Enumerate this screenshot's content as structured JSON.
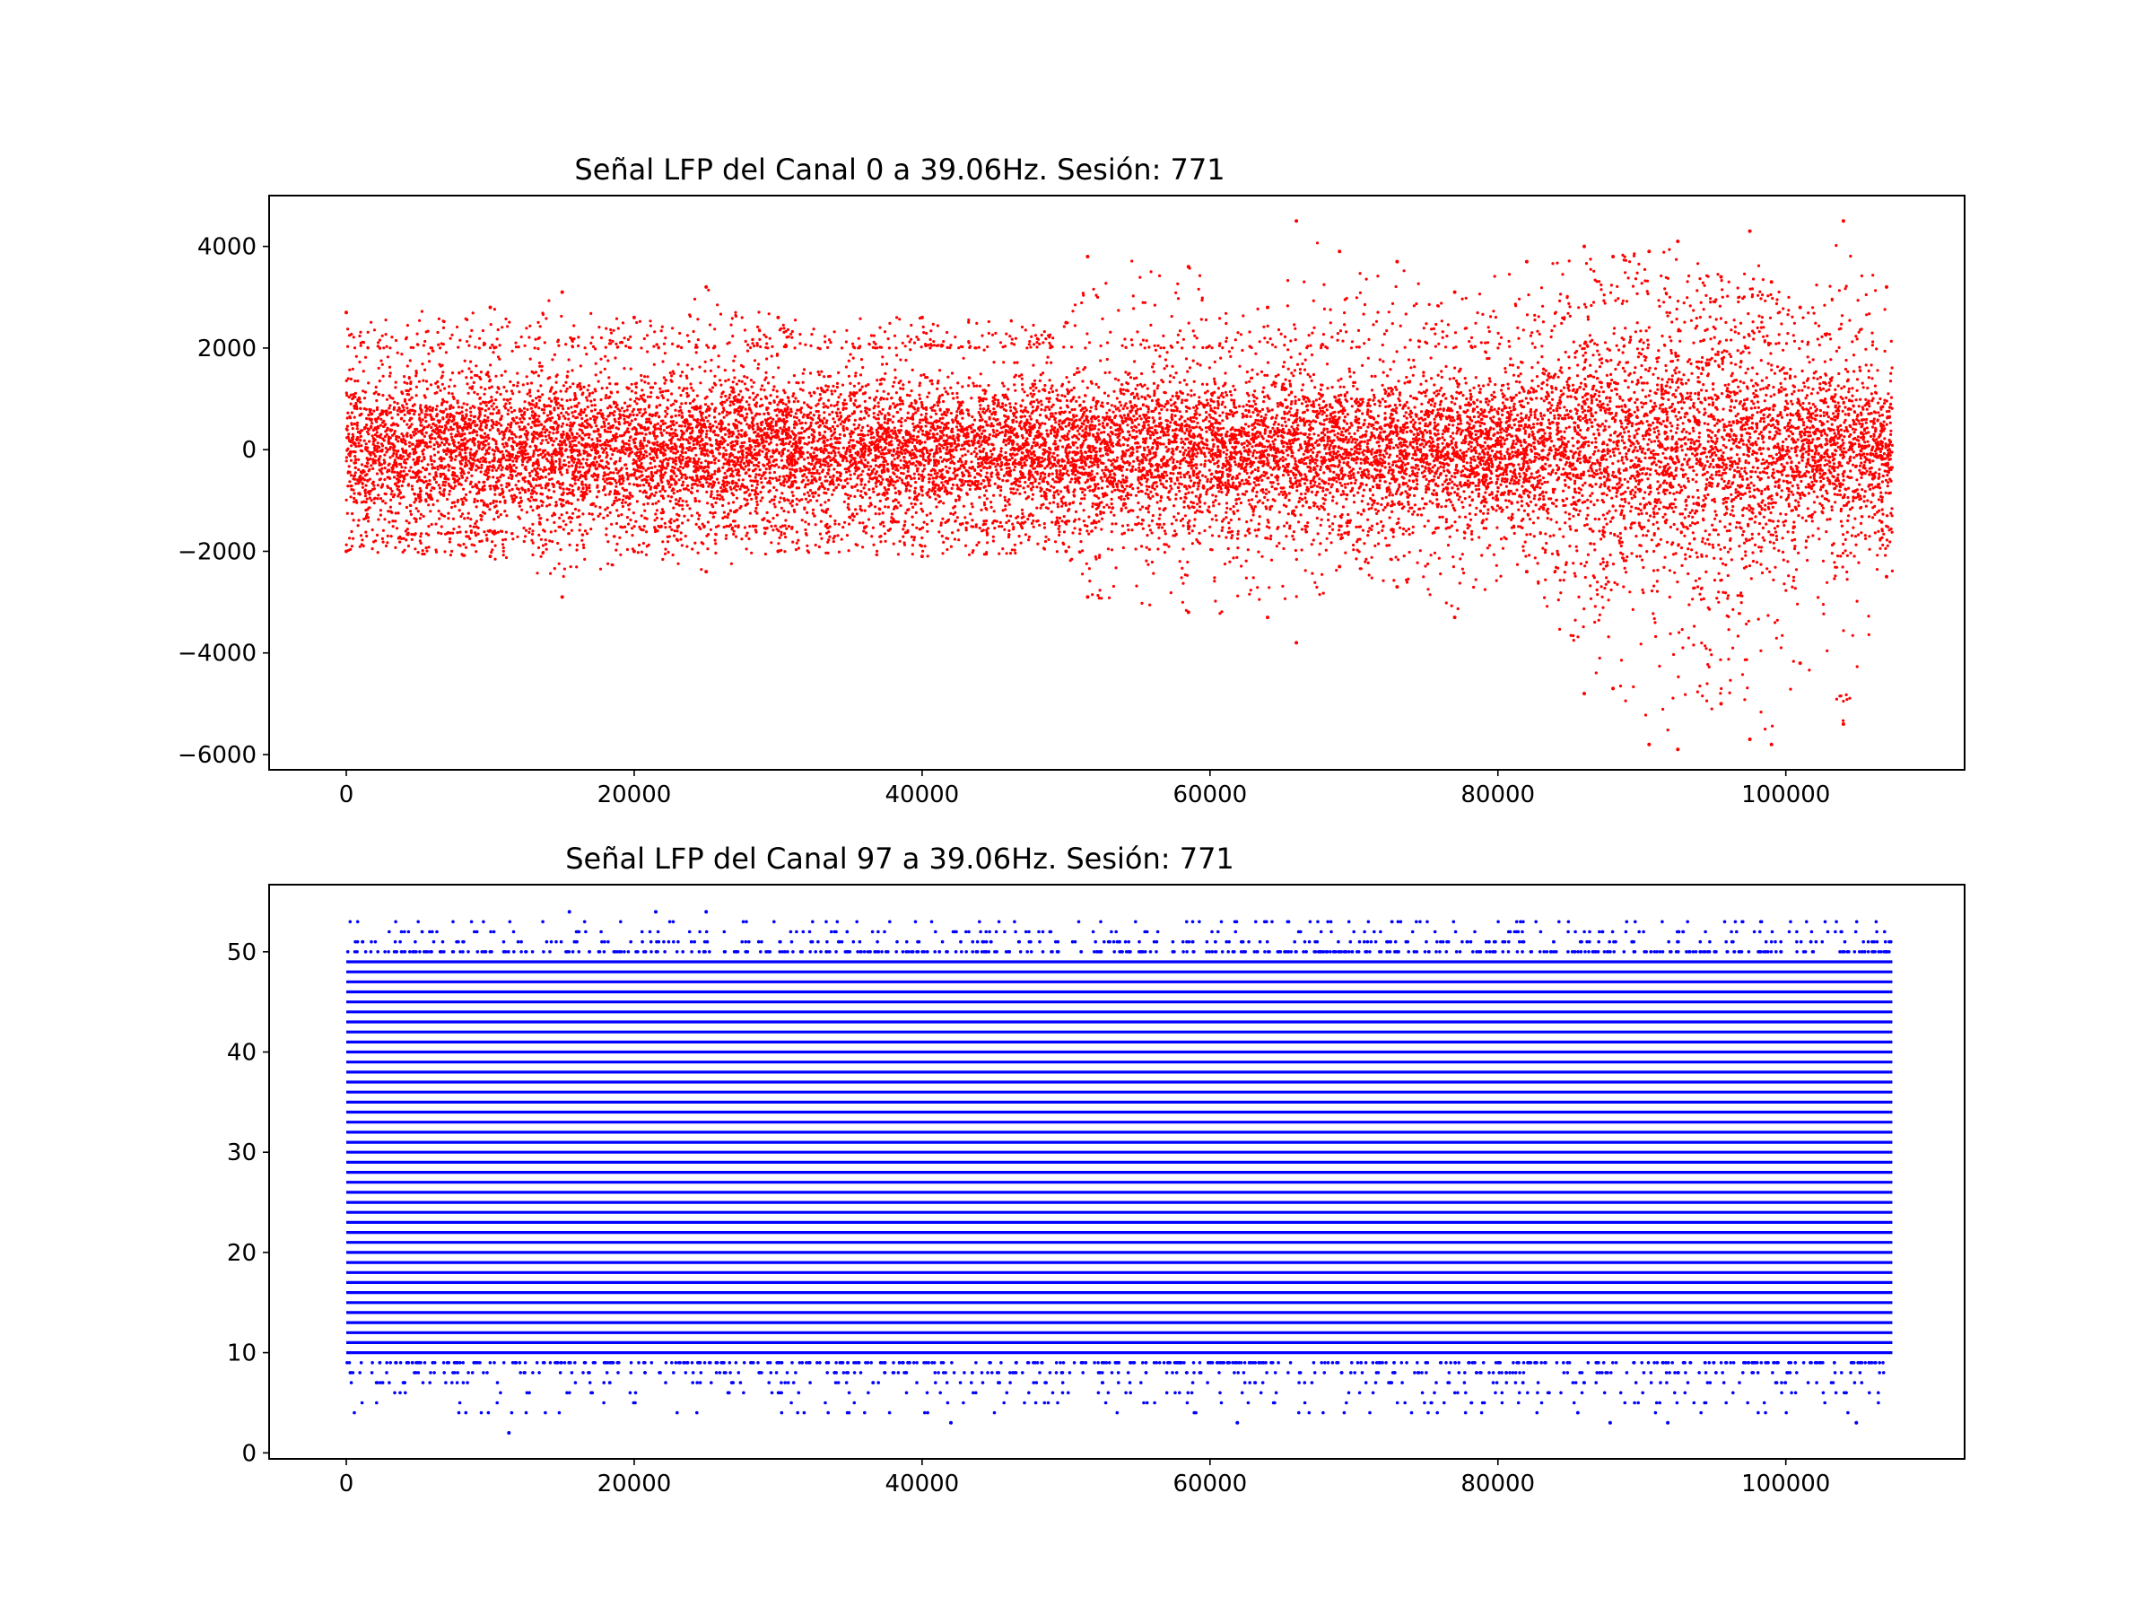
{
  "chart_data": [
    {
      "type": "scatter",
      "title": "Señal LFP del Canal 0 a 39.06Hz. Sesión: 771",
      "xlabel": "",
      "ylabel": "",
      "xlim": [
        -5360,
        112420
      ],
      "ylim": [
        -6300,
        5000
      ],
      "xticks": [
        0,
        20000,
        40000,
        60000,
        80000,
        100000
      ],
      "yticks": [
        -6000,
        -4000,
        -2000,
        0,
        2000,
        4000
      ],
      "grid": false,
      "color": "#ff0000",
      "x_range": [
        0,
        107400
      ],
      "summary_by_x": [
        {
          "x": 0,
          "center": 0,
          "typical_min": -1700,
          "typical_max": 2000,
          "min": -2000,
          "max": 2700
        },
        {
          "x": 10000,
          "center": 0,
          "typical_min": -1600,
          "typical_max": 2000,
          "min": -2100,
          "max": 2800
        },
        {
          "x": 15000,
          "center": 0,
          "typical_min": -1600,
          "typical_max": 2000,
          "min": -2900,
          "max": 3100
        },
        {
          "x": 20000,
          "center": 0,
          "typical_min": -1500,
          "typical_max": 2000,
          "min": -2000,
          "max": 2600
        },
        {
          "x": 25000,
          "center": 0,
          "typical_min": -1500,
          "typical_max": 2000,
          "min": -2400,
          "max": 3200
        },
        {
          "x": 30000,
          "center": 0,
          "typical_min": -1500,
          "typical_max": 2000,
          "min": -2000,
          "max": 2600
        },
        {
          "x": 40000,
          "center": 0,
          "typical_min": -1400,
          "typical_max": 2000,
          "min": -2100,
          "max": 2600
        },
        {
          "x": 50000,
          "center": 0,
          "typical_min": -1400,
          "typical_max": 2000,
          "min": -2000,
          "max": 2500
        },
        {
          "x": 51500,
          "center": 0,
          "typical_min": -1400,
          "typical_max": 2000,
          "min": -2900,
          "max": 3800
        },
        {
          "x": 58500,
          "center": 0,
          "typical_min": -1500,
          "typical_max": 2000,
          "min": -3200,
          "max": 3600
        },
        {
          "x": 64000,
          "center": 0,
          "typical_min": -1500,
          "typical_max": 2000,
          "min": -3300,
          "max": 2800
        },
        {
          "x": 66000,
          "center": 0,
          "typical_min": -1500,
          "typical_max": 2000,
          "min": -3800,
          "max": 4500
        },
        {
          "x": 69000,
          "center": 0,
          "typical_min": -1500,
          "typical_max": 2000,
          "min": -2300,
          "max": 3900
        },
        {
          "x": 73000,
          "center": 0,
          "typical_min": -1500,
          "typical_max": 2000,
          "min": -2700,
          "max": 3700
        },
        {
          "x": 77000,
          "center": 0,
          "typical_min": -1500,
          "typical_max": 2000,
          "min": -3300,
          "max": 3100
        },
        {
          "x": 82000,
          "center": 0,
          "typical_min": -1500,
          "typical_max": 2000,
          "min": -2400,
          "max": 3700
        },
        {
          "x": 86000,
          "center": 0,
          "typical_min": -2500,
          "typical_max": 2800,
          "min": -4800,
          "max": 4000
        },
        {
          "x": 88000,
          "center": 0,
          "typical_min": -2600,
          "typical_max": 2900,
          "min": -4700,
          "max": 3800
        },
        {
          "x": 90500,
          "center": 0,
          "typical_min": -2800,
          "typical_max": 3000,
          "min": -5800,
          "max": 3900
        },
        {
          "x": 92500,
          "center": 0,
          "typical_min": -2600,
          "typical_max": 2800,
          "min": -5900,
          "max": 4100
        },
        {
          "x": 95500,
          "center": 0,
          "typical_min": -2800,
          "typical_max": 2900,
          "min": -5000,
          "max": 3400
        },
        {
          "x": 97500,
          "center": 0,
          "typical_min": -2900,
          "typical_max": 3000,
          "min": -5700,
          "max": 4300
        },
        {
          "x": 99000,
          "center": 0,
          "typical_min": -2700,
          "typical_max": 2900,
          "min": -5800,
          "max": 3300
        },
        {
          "x": 101000,
          "center": 0,
          "typical_min": -1700,
          "typical_max": 2000,
          "min": -4200,
          "max": 2800
        },
        {
          "x": 104000,
          "center": 0,
          "typical_min": -2000,
          "typical_max": 2400,
          "min": -5400,
          "max": 4500
        },
        {
          "x": 107000,
          "center": 0,
          "typical_min": -1500,
          "typical_max": 1800,
          "min": -2500,
          "max": 3200
        }
      ]
    },
    {
      "type": "scatter",
      "title": "Señal LFP del Canal 97 a 39.06Hz. Sesión: 771",
      "xlabel": "",
      "ylabel": "",
      "xlim": [
        -5360,
        112420
      ],
      "ylim": [
        -0.6,
        56.7
      ],
      "xticks": [
        0,
        20000,
        40000,
        60000,
        80000,
        100000
      ],
      "yticks": [
        0,
        10,
        20,
        30,
        40,
        50
      ],
      "grid": false,
      "color": "#0000ff",
      "x_range": [
        0,
        107400
      ],
      "value_levels": {
        "min": 2,
        "max": 54,
        "step": 1,
        "dense_range": [
          10,
          49
        ]
      },
      "outliers": [
        {
          "x": 11300,
          "y": 2
        },
        {
          "x": 15500,
          "y": 54
        },
        {
          "x": 21500,
          "y": 54
        },
        {
          "x": 25000,
          "y": 54
        },
        {
          "x": 42000,
          "y": 3
        },
        {
          "x": 61900,
          "y": 3
        },
        {
          "x": 87800,
          "y": 3
        },
        {
          "x": 91800,
          "y": 3
        },
        {
          "x": 104900,
          "y": 3
        }
      ]
    }
  ]
}
